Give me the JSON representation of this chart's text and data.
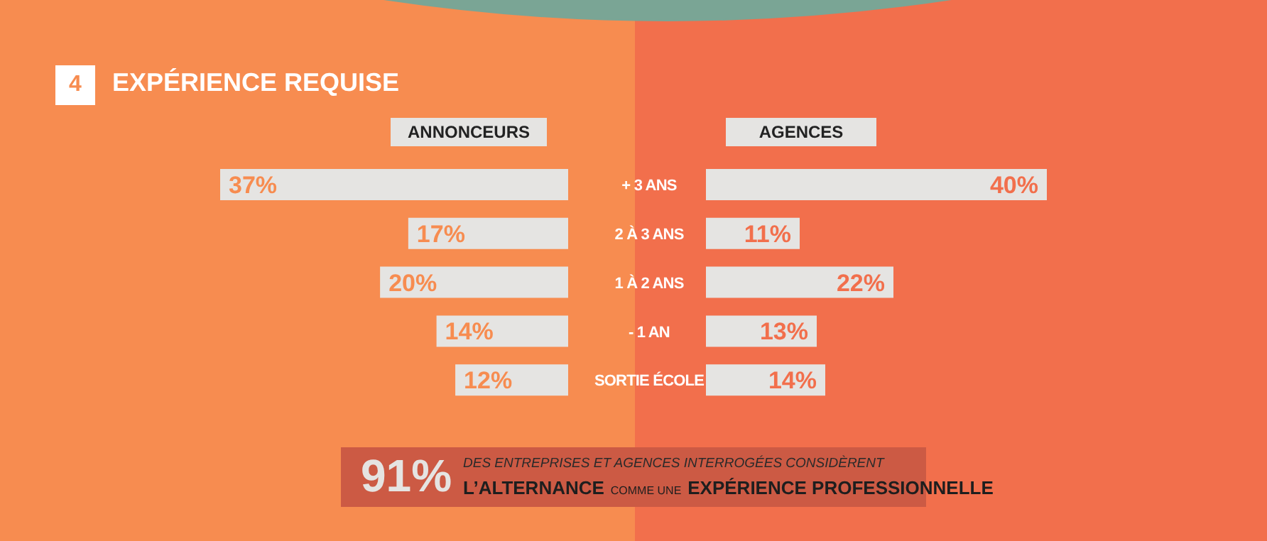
{
  "chart_data": [
    {
      "type": "bar",
      "orientation": "horizontal",
      "title": "EXPÉRIENCE REQUISE",
      "categories": [
        "+ 3 ANS",
        "2 À 3 ANS",
        "1 À 2 ANS",
        "- 1 AN",
        "SORTIE ÉCOLE"
      ],
      "series": [
        {
          "name": "ANNONCEURS",
          "color": "#e5e4e2",
          "values": [
            37,
            17,
            20,
            14,
            12
          ],
          "value_labels": [
            "37%",
            "17%",
            "20%",
            "14%",
            "12%"
          ]
        }
      ],
      "tick_labels": "y",
      "grid": false,
      "legend": false,
      "annotations": [
        "4",
        "91%",
        "DES ENTREPRISES ET AGENCES INTERROGÉES CONSIDÈRENT",
        "L’ALTERNANCE",
        "COMME UNE",
        "EXPÉRIENCE PROFESSIONNELLE"
      ]
    },
    {
      "type": "bar",
      "orientation": "horizontal",
      "categories": [
        null,
        null,
        null,
        null,
        null
      ],
      "series": [
        {
          "name": "AGENCES",
          "color": "#e5e4e2",
          "values": [
            40,
            11,
            22,
            13,
            14
          ],
          "value_labels": [
            "40%",
            "11%",
            "22%",
            "13%",
            "14%"
          ]
        }
      ],
      "tick_labels": false,
      "grid": false,
      "legend": false
    }
  ]
}
